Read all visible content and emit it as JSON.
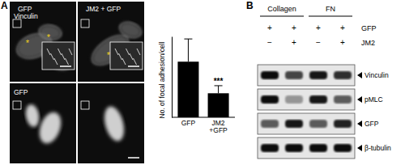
{
  "chart_data": {
    "type": "bar",
    "categories": [
      "GFP",
      "JM2 +GFP"
    ],
    "values": [
      22,
      9.5
    ],
    "errors": [
      9,
      3
    ],
    "significance": [
      null,
      "***"
    ],
    "ylabel": "No. of focal adhesion/cell",
    "ylim": [
      0,
      32
    ],
    "yticks": [],
    "tick_labels": "x",
    "color": "#000000"
  },
  "panel_a": {
    "label": "A",
    "columns": [
      {
        "title": "GFP",
        "markers": [
          "*",
          "*"
        ]
      },
      {
        "title": "JM2 + GFP",
        "markers": [
          "*"
        ]
      }
    ],
    "rows": [
      "Vinculin",
      "GFP"
    ]
  },
  "panel_b": {
    "label": "B",
    "groups": [
      {
        "name": "Collagen",
        "lanes": 2
      },
      {
        "name": "FN",
        "lanes": 2
      }
    ],
    "treatments": [
      {
        "name": "GFP",
        "signs": [
          "+",
          "+",
          "+",
          "+"
        ]
      },
      {
        "name": "JM2",
        "signs": [
          "−",
          "+",
          "−",
          "+"
        ]
      }
    ],
    "blots": [
      {
        "name": "Vinculin",
        "intensity": [
          0.95,
          0.7,
          0.9,
          0.8
        ]
      },
      {
        "name": "pMLC",
        "intensity": [
          0.95,
          0.35,
          0.9,
          0.6
        ]
      },
      {
        "name": "GFP",
        "intensity": [
          0.6,
          0.9,
          0.6,
          0.85
        ]
      },
      {
        "name": "β-tubulin",
        "intensity": [
          0.95,
          0.95,
          0.95,
          0.95
        ]
      }
    ]
  }
}
